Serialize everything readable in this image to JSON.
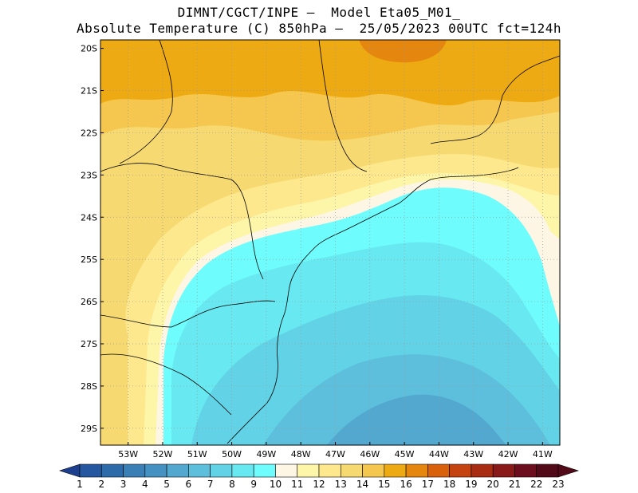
{
  "header": {
    "line1": "DIMNT/CGCT/INPE –  Model Eta05_M01_",
    "line2": "Absolute Temperature (C) 850hPa –  25/05/2023 00UTC fct=124h"
  },
  "map": {
    "lat_labels": [
      "20S",
      "21S",
      "22S",
      "23S",
      "24S",
      "25S",
      "26S",
      "27S",
      "28S",
      "29S"
    ],
    "lon_labels": [
      "53W",
      "52W",
      "51W",
      "50W",
      "49W",
      "48W",
      "47W",
      "46W",
      "45W",
      "44W",
      "43W",
      "42W",
      "41W"
    ],
    "lat_range": [
      -29.4,
      -19.8
    ],
    "lon_range": [
      -53.8,
      -40.5
    ],
    "grid": "dotted"
  },
  "colorbar": {
    "labels": [
      "1",
      "2",
      "3",
      "4",
      "5",
      "6",
      "7",
      "8",
      "9",
      "10",
      "11",
      "12",
      "13",
      "14",
      "15",
      "16",
      "17",
      "18",
      "19",
      "20",
      "21",
      "22",
      "23"
    ],
    "colors": [
      "#1d3f8f",
      "#24579f",
      "#2d6aa9",
      "#3a7fb6",
      "#4592c2",
      "#52a8cf",
      "#5dbfdc",
      "#62d3e6",
      "#68e8f0",
      "#6ffcfc",
      "#fdf6e4",
      "#fdf5a8",
      "#fde88d",
      "#f7d971",
      "#f5c74e",
      "#eeaa12",
      "#e5860f",
      "#d9610c",
      "#c5430e",
      "#a92c12",
      "#8a1a1a",
      "#6c0e1e",
      "#520a19"
    ]
  },
  "legend_colors": {
    "7": "#5dbfdc",
    "8": "#62d3e6",
    "9": "#68e8f0",
    "10": "#6ffcfc",
    "11": "#fdf6e4",
    "12": "#fdf5a8",
    "13": "#fde88d",
    "14": "#f7d971",
    "15": "#f5c74e",
    "16": "#eeaa12"
  }
}
